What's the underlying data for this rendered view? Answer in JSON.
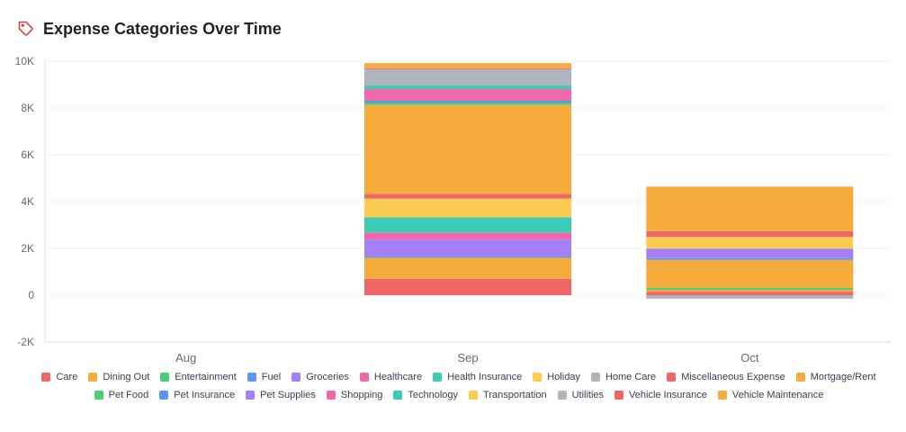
{
  "header": {
    "title": "Expense Categories Over Time",
    "icon": "tag-icon"
  },
  "colors": {
    "accent": "#d33a3a",
    "grid": "#eef0f3",
    "axis": "#d9dde3"
  },
  "chart_data": {
    "type": "bar",
    "stacked": true,
    "categories": [
      "Aug",
      "Sep",
      "Oct"
    ],
    "ylim": [
      -2000,
      10000
    ],
    "yticks": [
      -2000,
      0,
      2000,
      4000,
      6000,
      8000,
      10000
    ],
    "ytick_labels": [
      "-2K",
      "0",
      "2K",
      "4K",
      "6K",
      "8K",
      "10K"
    ],
    "grid": true,
    "legend_position": "bottom",
    "series": [
      {
        "name": "Care",
        "color": "#f06666",
        "values": [
          0,
          700,
          150
        ]
      },
      {
        "name": "Dining Out",
        "color": "#f5ac3c",
        "values": [
          0,
          900,
          80
        ]
      },
      {
        "name": "Entertainment",
        "color": "#4cce79",
        "values": [
          0,
          0,
          80
        ]
      },
      {
        "name": "Fuel",
        "color": "#5b97f2",
        "values": [
          0,
          80,
          0
        ]
      },
      {
        "name": "Groceries",
        "color": "#a57ff5",
        "values": [
          0,
          700,
          0
        ]
      },
      {
        "name": "Healthcare",
        "color": "#ef6aab",
        "values": [
          0,
          300,
          0
        ]
      },
      {
        "name": "Health Insurance",
        "color": "#3ccbb5",
        "values": [
          0,
          650,
          0
        ]
      },
      {
        "name": "Holiday",
        "color": "#fccb52",
        "values": [
          0,
          800,
          0
        ]
      },
      {
        "name": "Home Care",
        "color": "#b0b5bd",
        "values": [
          0,
          0,
          0
        ]
      },
      {
        "name": "Miscellaneous Expense",
        "color": "#f06666",
        "values": [
          0,
          200,
          0
        ]
      },
      {
        "name": "Mortgage/Rent",
        "color": "#f5ac3c",
        "values": [
          0,
          3800,
          1200
        ]
      },
      {
        "name": "Pet Food",
        "color": "#4cce79",
        "values": [
          0,
          100,
          0
        ]
      },
      {
        "name": "Pet Insurance",
        "color": "#5b97f2",
        "values": [
          0,
          80,
          80
        ]
      },
      {
        "name": "Pet Supplies",
        "color": "#a57ff5",
        "values": [
          0,
          0,
          400
        ]
      },
      {
        "name": "Shopping",
        "color": "#ef6aab",
        "values": [
          0,
          500,
          0
        ]
      },
      {
        "name": "Technology",
        "color": "#3ccbb5",
        "values": [
          0,
          150,
          0
        ]
      },
      {
        "name": "Transportation",
        "color": "#fccb52",
        "values": [
          0,
          0,
          500
        ]
      },
      {
        "name": "Utilities",
        "color": "#b0b5bd",
        "values": [
          0,
          700,
          -150
        ]
      },
      {
        "name": "Vehicle Insurance",
        "color": "#f06666",
        "values": [
          0,
          40,
          250
        ]
      },
      {
        "name": "Vehicle Maintenance",
        "color": "#f5ac3c",
        "values": [
          0,
          220,
          1900
        ]
      }
    ]
  }
}
